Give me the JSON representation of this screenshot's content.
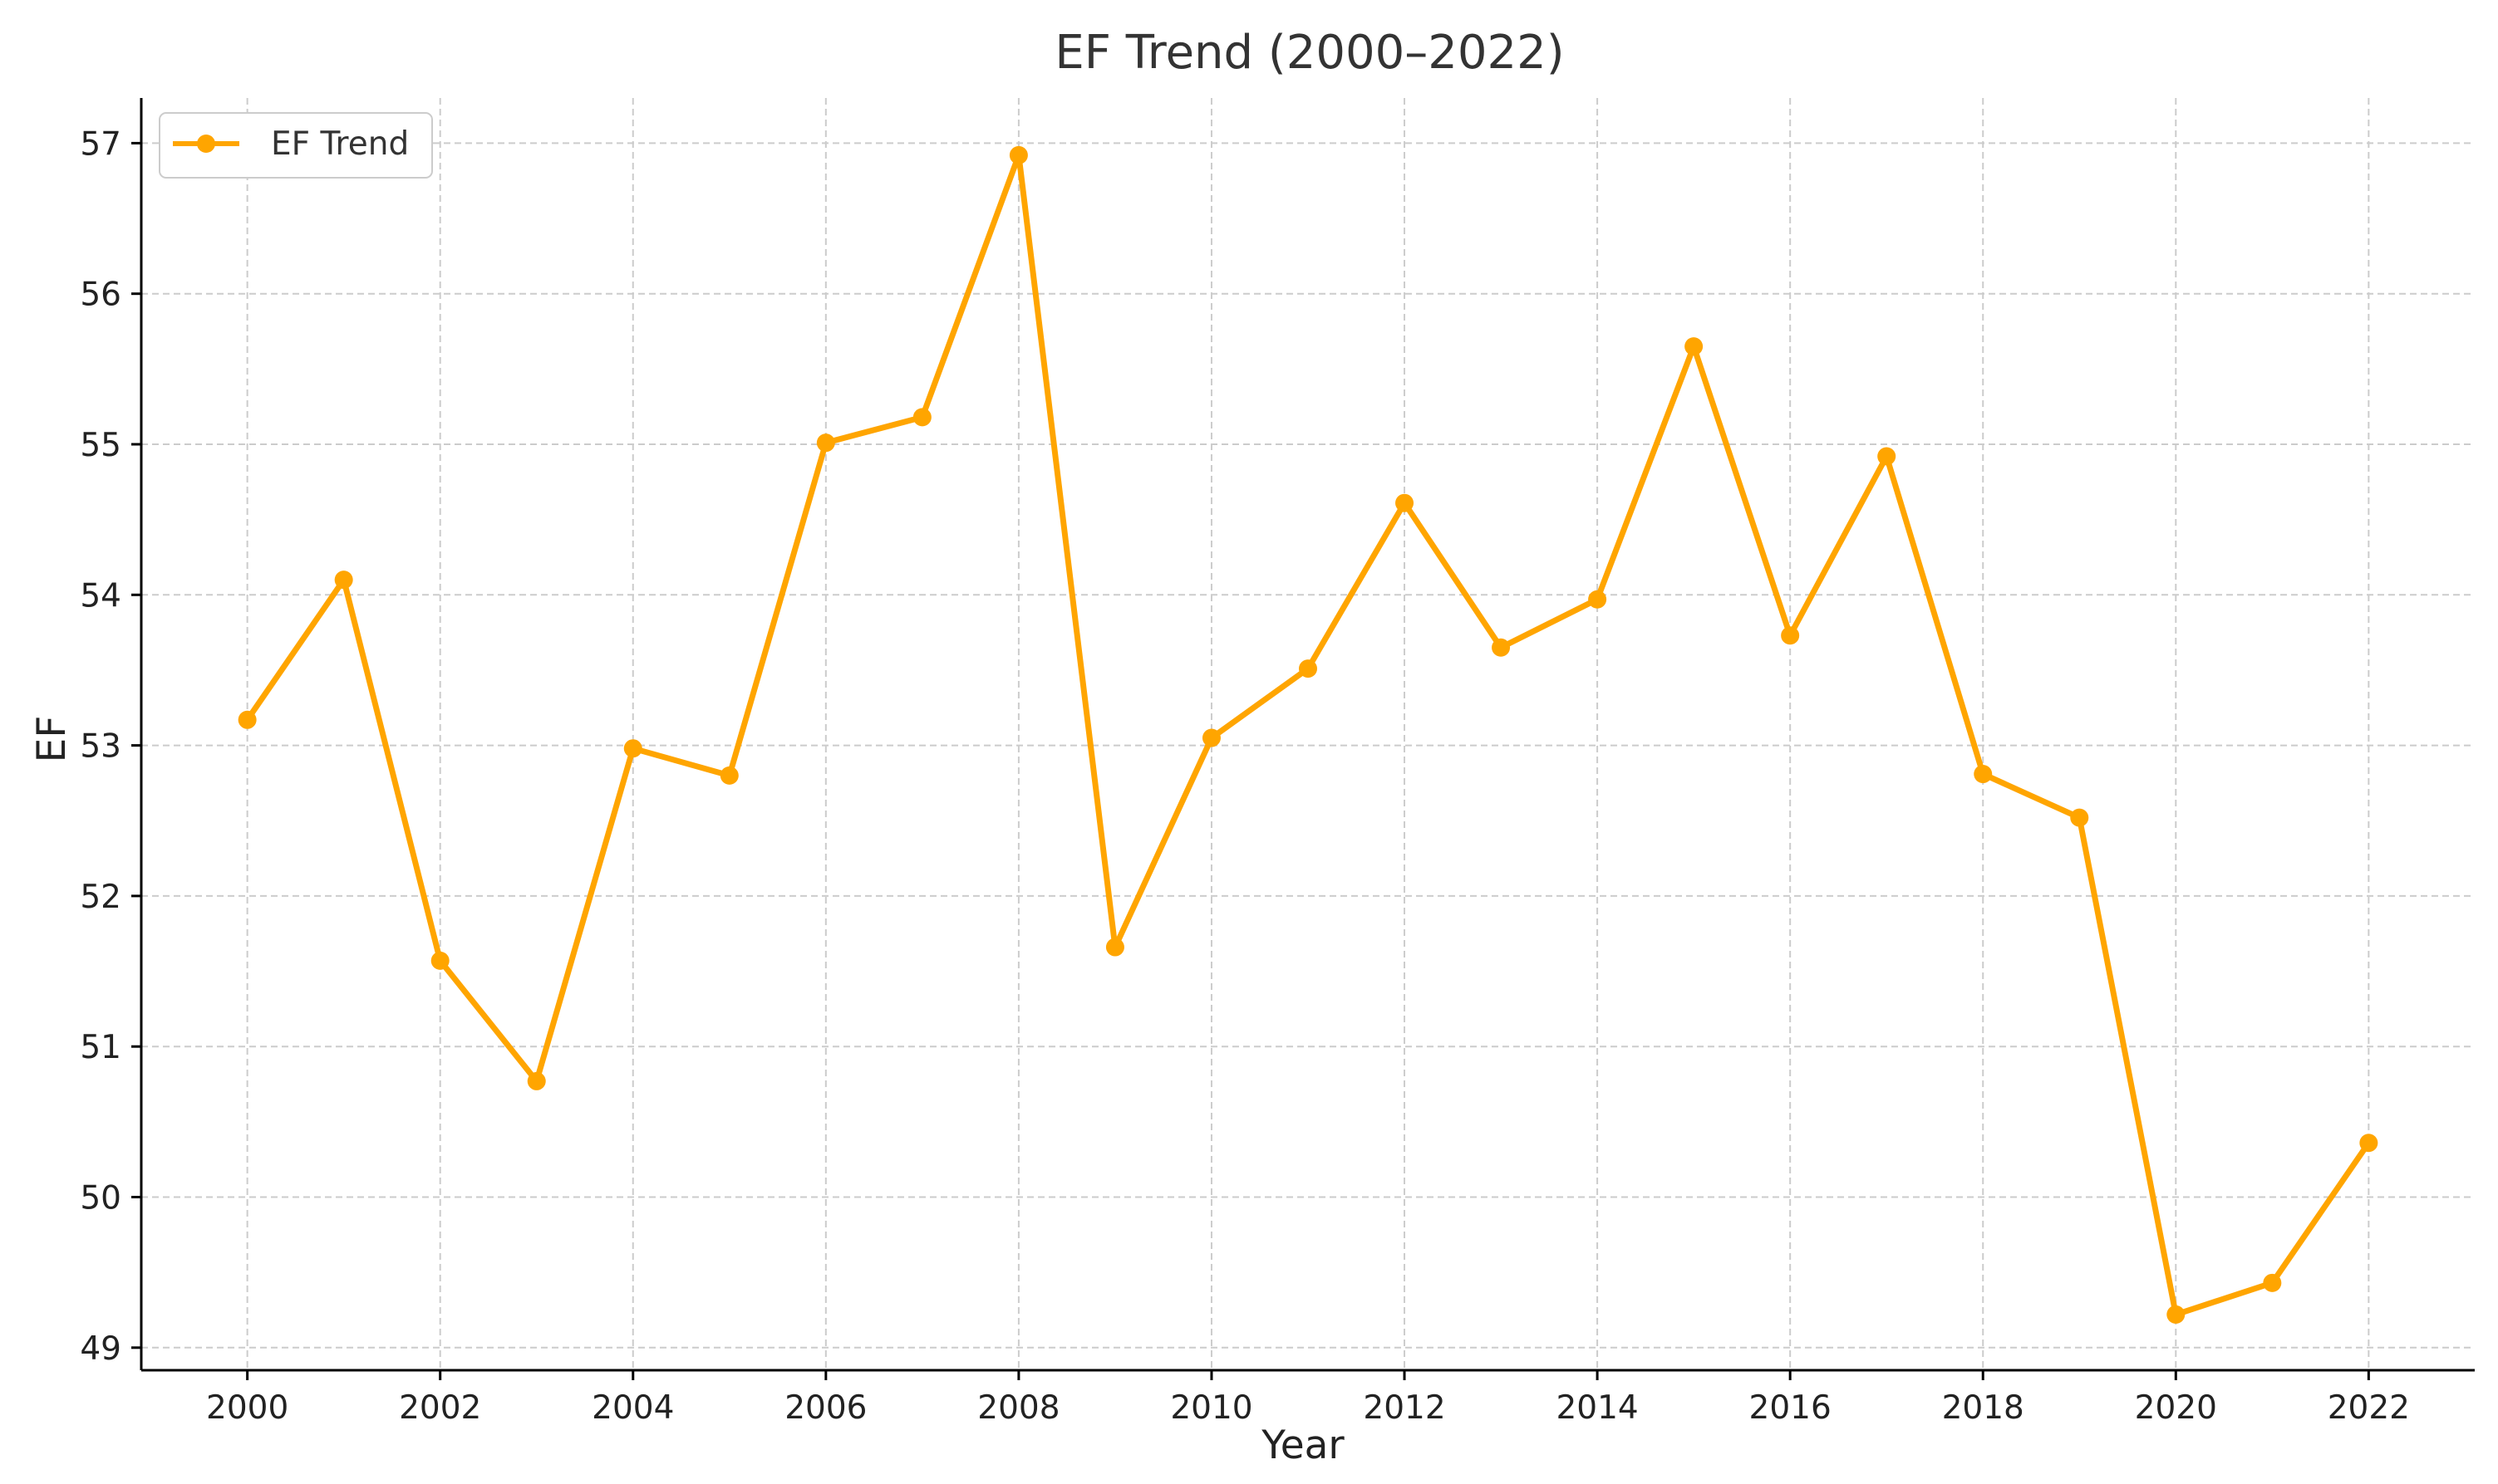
{
  "chart_data": {
    "type": "line",
    "title": "EF Trend (2000–2022)",
    "xlabel": "Year",
    "ylabel": "EF",
    "xlim": [
      1998.9,
      2023.1
    ],
    "ylim": [
      48.85,
      57.3
    ],
    "xticks": [
      2000,
      2002,
      2004,
      2006,
      2008,
      2010,
      2012,
      2014,
      2016,
      2018,
      2020,
      2022
    ],
    "xtick_labels": [
      "2000",
      "2002",
      "2004",
      "2006",
      "2008",
      "2010",
      "2012",
      "2014",
      "2016",
      "2018",
      "2020",
      "2022"
    ],
    "yticks": [
      49,
      50,
      51,
      52,
      53,
      54,
      55,
      56,
      57
    ],
    "ytick_labels": [
      "49",
      "50",
      "51",
      "52",
      "53",
      "54",
      "55",
      "56",
      "57"
    ],
    "grid": true,
    "legend_position": "top-left",
    "x": [
      2000,
      2001,
      2002,
      2003,
      2004,
      2005,
      2006,
      2007,
      2008,
      2009,
      2010,
      2011,
      2012,
      2013,
      2014,
      2015,
      2016,
      2017,
      2018,
      2019,
      2020,
      2021,
      2022
    ],
    "series": [
      {
        "name": "EF Trend",
        "color": "#FFA500",
        "marker": "circle",
        "values": [
          53.17,
          54.1,
          51.57,
          50.77,
          52.98,
          52.8,
          55.01,
          55.18,
          56.92,
          51.66,
          53.05,
          53.51,
          54.61,
          53.65,
          53.97,
          55.65,
          53.73,
          54.92,
          52.81,
          52.52,
          49.22,
          49.43,
          50.36
        ]
      }
    ]
  },
  "colors": {
    "grid": "#cccccc",
    "axis": "#000000",
    "text": "#222222",
    "title": "#333333"
  }
}
